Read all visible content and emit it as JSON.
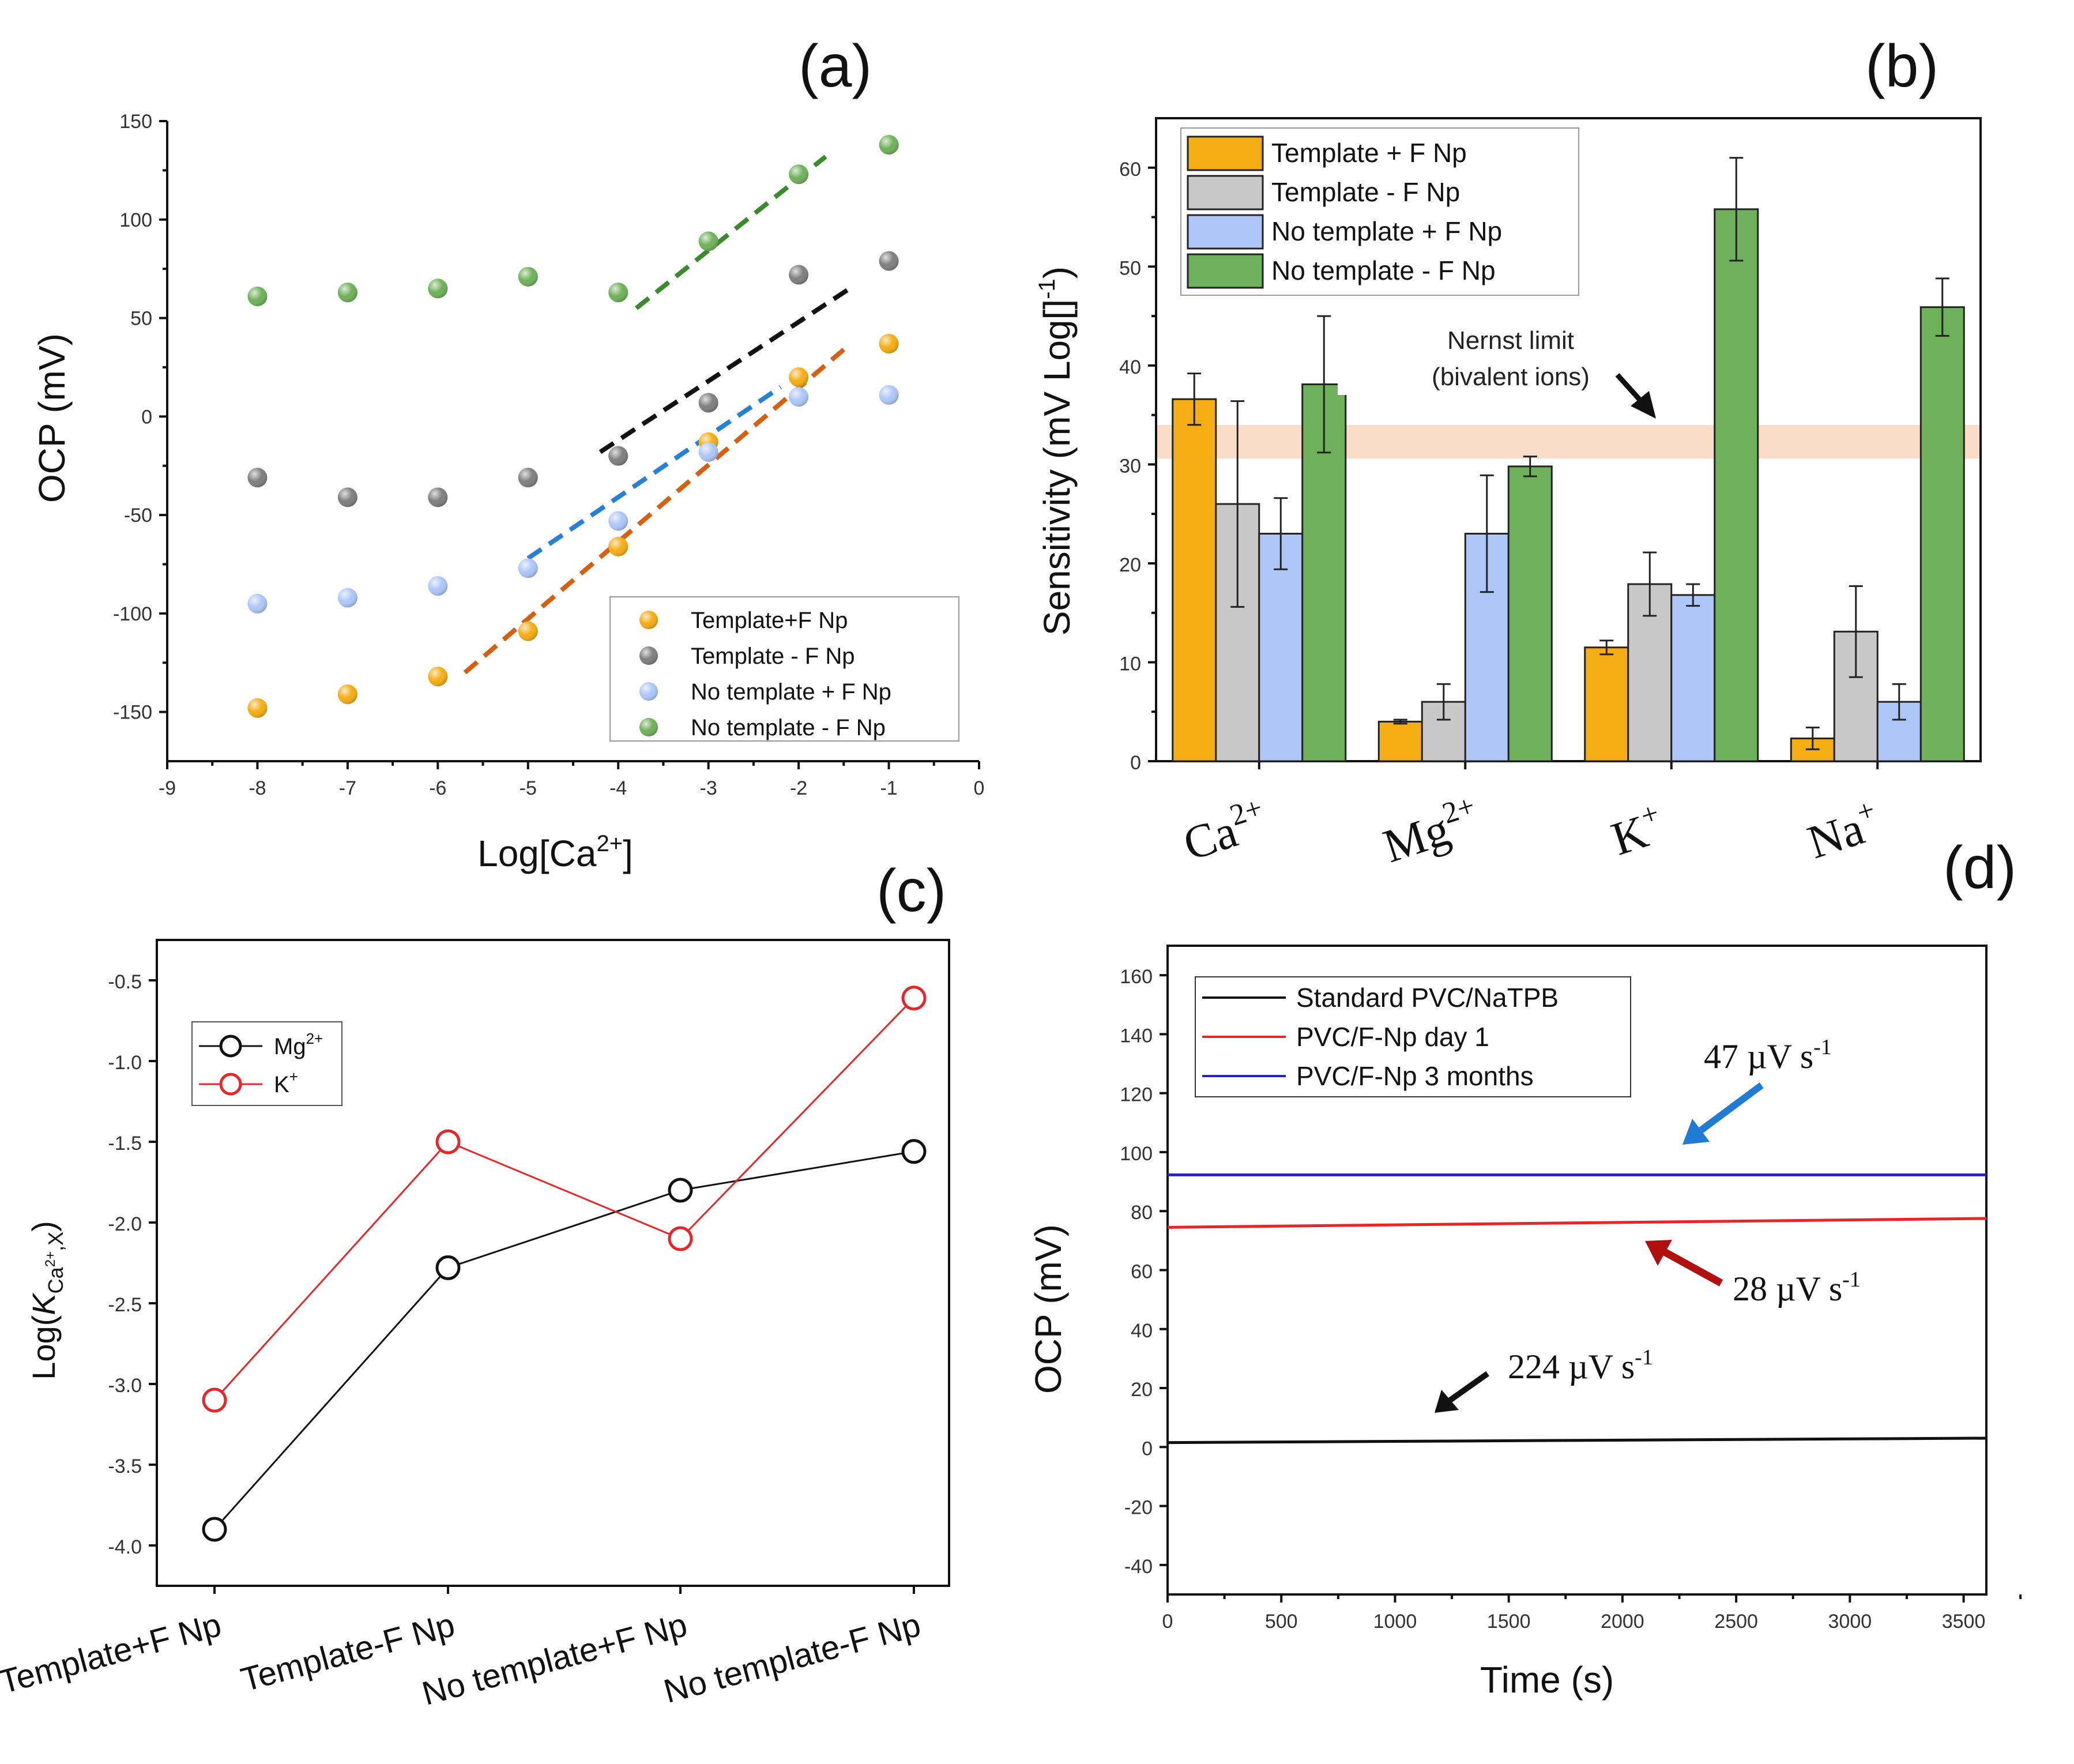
{
  "panels": {
    "a": {
      "label": "(a)"
    },
    "b": {
      "label": "(b)"
    },
    "c": {
      "label": "(c)"
    },
    "d": {
      "label": "(d)"
    }
  },
  "colors": {
    "orange": "#f5ad14",
    "grey": "#7f7f7f",
    "light_grey": "#c8c8c8",
    "light_blue": "#aec6f8",
    "green": "#6fb15a",
    "dash_orange": "#d95f0e",
    "dash_black": "#111111",
    "dash_blue": "#2481d6",
    "dash_green": "#3c8a2e",
    "red": "#e8262a",
    "blue": "#2222dd",
    "arrow_blue": "#1f7bd4",
    "arrow_red": "#b01010",
    "nernst_band": "#fad6bf"
  },
  "chart_data": [
    {
      "id": "a",
      "type": "scatter",
      "title": "",
      "xlabel": "Log[Ca",
      "xlabel_sup": "2+",
      "xlabel_end": "]",
      "ylabel": "OCP (mV)",
      "xlim": [
        -9,
        0
      ],
      "ylim": [
        -175,
        150
      ],
      "xticks": [
        -9,
        -8,
        -7,
        -6,
        -5,
        -4,
        -3,
        -2,
        -1,
        0
      ],
      "yticks": [
        -150,
        -100,
        -50,
        0,
        50,
        100,
        150
      ],
      "xtick_labels": [
        "-9",
        "-8",
        "-7",
        "-6",
        "-5",
        "-4",
        "-3",
        "-2",
        "-1",
        "0"
      ],
      "ytick_labels": [
        "-150",
        "-100",
        "-50",
        "0",
        "50",
        "100",
        "150"
      ],
      "x": [
        -8,
        -7,
        -6,
        -5,
        -4,
        -3,
        -2,
        -1
      ],
      "series": [
        {
          "name": "Template+F Np",
          "color": "orange",
          "values": [
            -148,
            -141,
            -132,
            -109,
            -66,
            -13,
            20,
            37
          ]
        },
        {
          "name": "Template - F Np",
          "color": "grey",
          "values": [
            -31,
            -41,
            -41,
            -31,
            -20,
            7,
            72,
            79
          ]
        },
        {
          "name": "No template + F Np",
          "color": "light_blue",
          "values": [
            -95,
            -92,
            -86,
            -77,
            -53,
            -18,
            10,
            11
          ]
        },
        {
          "name": "No template - F Np",
          "color": "green",
          "values": [
            61,
            63,
            65,
            71,
            63,
            89,
            123,
            138
          ]
        }
      ],
      "fit_lines": [
        {
          "color": "dash_orange",
          "x": [
            -5.7,
            -1.5
          ],
          "y": [
            -130,
            34
          ]
        },
        {
          "color": "dash_black",
          "x": [
            -4.2,
            -1.4
          ],
          "y": [
            -18,
            66
          ]
        },
        {
          "color": "dash_blue",
          "x": [
            -5.0,
            -2.2
          ],
          "y": [
            -72,
            15
          ]
        },
        {
          "color": "dash_green",
          "x": [
            -3.8,
            -1.7
          ],
          "y": [
            55,
            132
          ]
        }
      ],
      "legend_position": "bottom-right"
    },
    {
      "id": "b",
      "type": "bar",
      "xlabel": "",
      "ylabel": "Sensitivity (mV Log[]",
      "ylabel_sup": "-1",
      "ylabel_end": ")",
      "ylim": [
        0,
        65
      ],
      "yticks": [
        0,
        10,
        20,
        30,
        40,
        50,
        60
      ],
      "ytick_labels": [
        "0",
        "10",
        "20",
        "30",
        "40",
        "50",
        "60"
      ],
      "categories": [
        "Ca",
        "Mg",
        "K",
        "Na"
      ],
      "category_sups": [
        "2+",
        "2+",
        "+",
        "+"
      ],
      "series": [
        {
          "name": "Template + F Np",
          "color": "orange",
          "values": [
            36.6,
            4.0,
            11.5,
            2.3
          ],
          "errors": [
            2.6,
            0.2,
            0.7,
            1.1
          ]
        },
        {
          "name": "Template - F Np",
          "color": "light_grey",
          "values": [
            26.0,
            6.0,
            17.9,
            13.1
          ],
          "errors": [
            10.4,
            1.8,
            3.2,
            4.6
          ]
        },
        {
          "name": "No template + F Np",
          "color": "light_blue",
          "values": [
            23.0,
            23.0,
            16.8,
            6.0
          ],
          "errors": [
            3.6,
            5.9,
            1.1,
            1.8
          ]
        },
        {
          "name": "No template - F Np",
          "color": "green",
          "values": [
            38.1,
            29.8,
            55.8,
            45.9
          ],
          "errors": [
            6.9,
            1.0,
            5.2,
            2.9
          ]
        }
      ],
      "nernst_band": [
        30.6,
        34.0
      ],
      "annotation_line1": "Nernst limit",
      "annotation_line2": "(bivalent ions)",
      "legend_position": "top-left"
    },
    {
      "id": "c",
      "type": "line",
      "ylabel_prefix": "Log(",
      "ylabel_K": "K",
      "ylabel_sub": "Ca",
      "ylabel_subsup": "2+",
      "ylabel_subend": ",X",
      "ylabel_end": ")",
      "ylim": [
        -4.25,
        -0.25
      ],
      "yticks": [
        -4.0,
        -3.5,
        -3.0,
        -2.5,
        -2.0,
        -1.5,
        -1.0,
        -0.5
      ],
      "ytick_labels": [
        "-4.0",
        "-3.5",
        "-3.0",
        "-2.5",
        "-2.0",
        "-1.5",
        "-1.0",
        "-0.5"
      ],
      "categories": [
        "Template+F Np",
        "Template-F Np",
        "No template+F Np",
        "No template-F Np"
      ],
      "series": [
        {
          "name": "Mg",
          "sup": "2+",
          "color": "dash_black",
          "values": [
            -3.9,
            -2.28,
            -1.8,
            -1.56
          ]
        },
        {
          "name": "K",
          "sup": "+",
          "color": "red",
          "values": [
            -3.1,
            -1.5,
            -2.1,
            -0.61
          ]
        }
      ],
      "legend_position": "top-left"
    },
    {
      "id": "d",
      "type": "line",
      "xlabel": "Time (s)",
      "ylabel": "OCP (mV)",
      "xlim": [
        0,
        3600
      ],
      "ylim": [
        -50,
        170
      ],
      "xticks": [
        0,
        500,
        1000,
        1500,
        2000,
        2500,
        3000,
        3500
      ],
      "xtick_labels": [
        "0",
        "500",
        "1000",
        "1500",
        "2000",
        "2500",
        "3000",
        "3500"
      ],
      "yticks": [
        -40,
        -20,
        0,
        20,
        40,
        60,
        80,
        100,
        120,
        140,
        160
      ],
      "ytick_labels": [
        "-40",
        "-20",
        "0",
        "20",
        "40",
        "60",
        "80",
        "100",
        "120",
        "140",
        "160"
      ],
      "series": [
        {
          "name": "Standard PVC/NaTPB",
          "color": "dash_black",
          "x": [
            0,
            3600
          ],
          "values": [
            1.5,
            3.0
          ]
        },
        {
          "name": "PVC/F-Np day 1",
          "color": "red",
          "x": [
            0,
            3600
          ],
          "values": [
            74.5,
            77.5
          ]
        },
        {
          "name": "PVC/F-Np 3 months",
          "color": "blue",
          "x": [
            0,
            3600
          ],
          "values": [
            92.3,
            92.3
          ]
        }
      ],
      "annotations": [
        {
          "num": "47",
          "unit": " µV s",
          "sup": "-1",
          "color": "arrow_blue"
        },
        {
          "num": "28",
          "unit": " µV s",
          "sup": "-1",
          "color": "arrow_red"
        },
        {
          "num": "224",
          "unit": " µV s",
          "sup": "-1",
          "color": "dash_black"
        }
      ],
      "legend_position": "top-left"
    }
  ]
}
